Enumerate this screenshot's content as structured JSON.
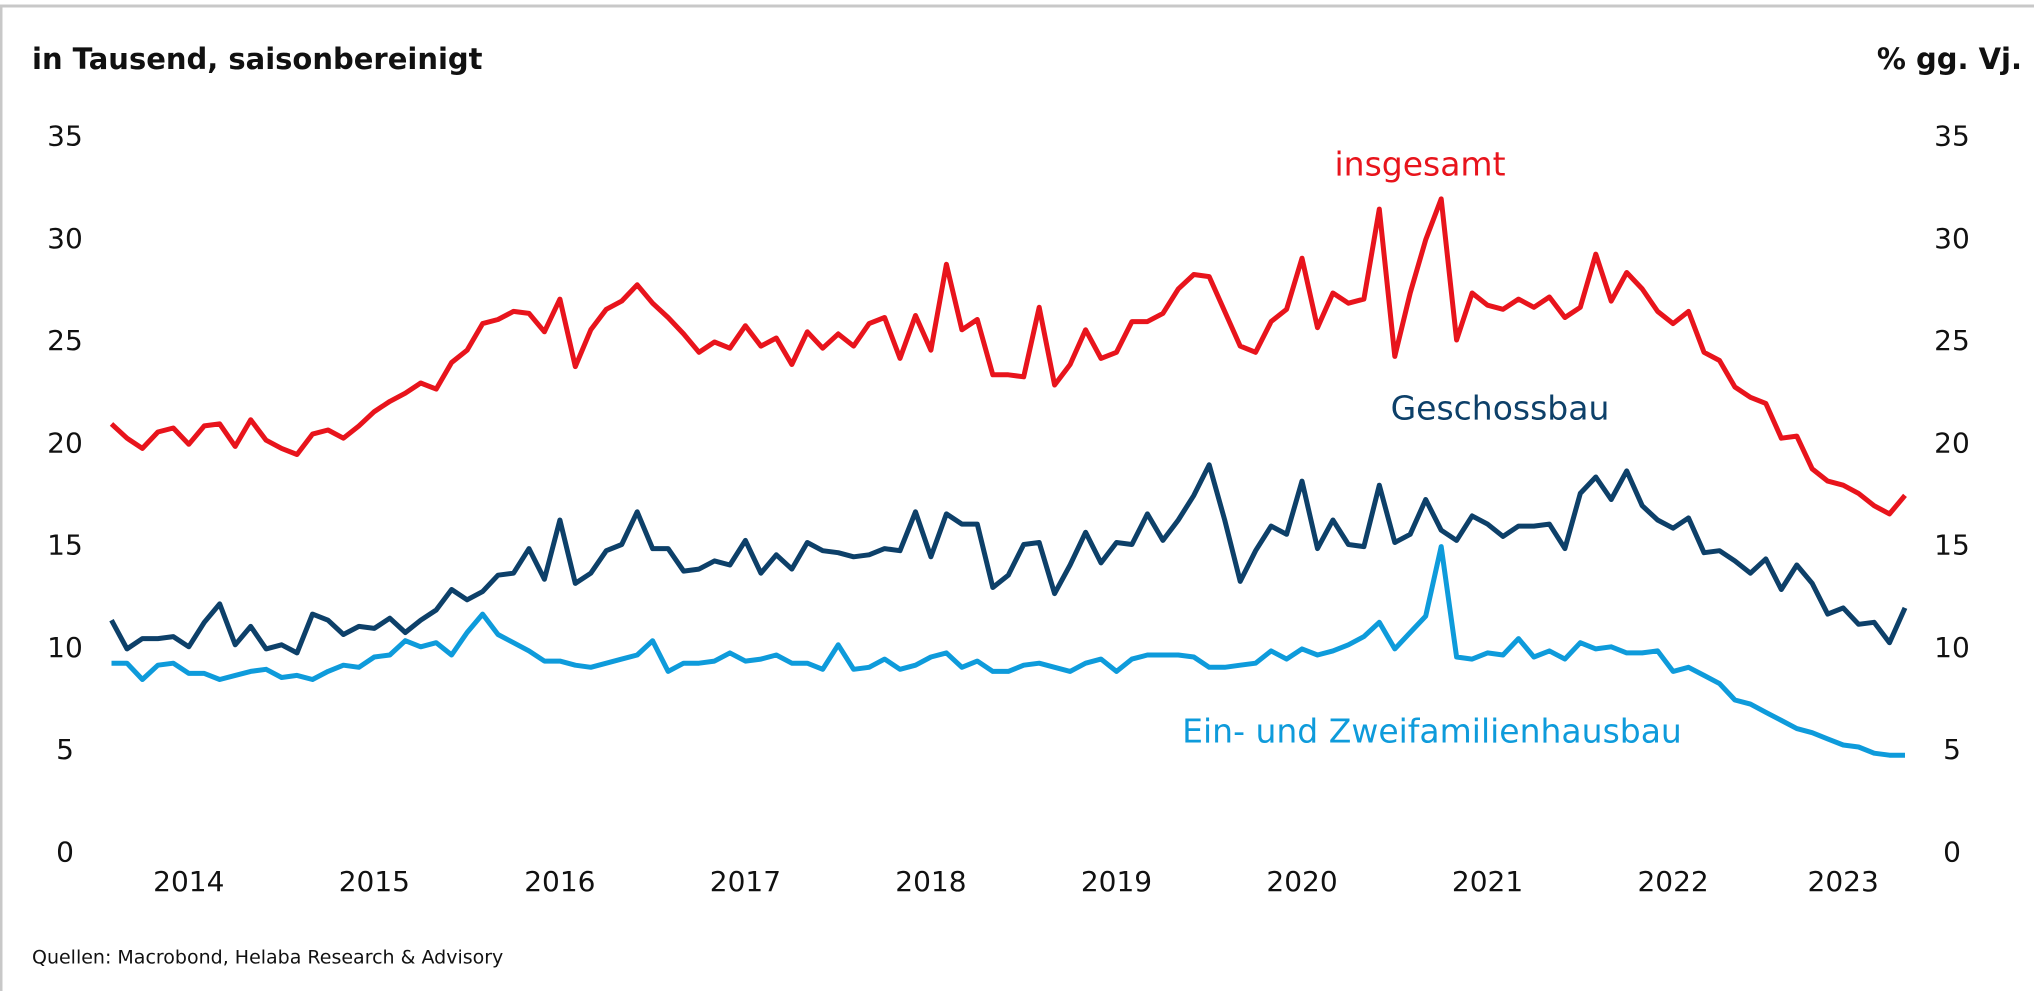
{
  "chart_data": {
    "type": "line",
    "title": "in Tausend, saisonbereinigt",
    "y2_title": "% gg. Vj.",
    "source": "Quellen: Macrobond, Helaba Research & Advisory",
    "categories": [
      null,
      null,
      null,
      null,
      null,
      "2014",
      null,
      null,
      null,
      null,
      null,
      null,
      null,
      null,
      null,
      null,
      null,
      "2015",
      null,
      null,
      null,
      null,
      null,
      null,
      null,
      null,
      null,
      null,
      null,
      "2016",
      null,
      null,
      null,
      null,
      null,
      null,
      null,
      null,
      null,
      null,
      null,
      "2017",
      null,
      null,
      null,
      null,
      null,
      null,
      null,
      null,
      null,
      null,
      null,
      "2018",
      null,
      null,
      null,
      null,
      null,
      null,
      null,
      null,
      null,
      null,
      null,
      "2019",
      null,
      null,
      null,
      null,
      null,
      null,
      null,
      null,
      null,
      null,
      null,
      "2020",
      null,
      null,
      null,
      null,
      null,
      null,
      null,
      null,
      null,
      null,
      null,
      "2021",
      null,
      null,
      null,
      null,
      null,
      null,
      null,
      null,
      null,
      null,
      null,
      "2022",
      null,
      null,
      null,
      null,
      null,
      null,
      null,
      null,
      null,
      null,
      "2023",
      null,
      null,
      null,
      null
    ],
    "series": [
      {
        "name": "insgesamt",
        "color": "#e8141c",
        "values": [
          21.0,
          20.3,
          19.8,
          20.6,
          20.8,
          20.0,
          20.9,
          21.0,
          19.9,
          21.2,
          20.2,
          19.8,
          19.5,
          20.5,
          20.7,
          20.3,
          20.9,
          21.6,
          22.1,
          22.5,
          23.0,
          22.7,
          24.0,
          24.6,
          25.9,
          26.1,
          26.5,
          26.4,
          25.5,
          27.1,
          23.8,
          25.6,
          26.6,
          27.0,
          27.8,
          26.9,
          26.2,
          25.4,
          24.5,
          25.0,
          24.7,
          25.8,
          24.8,
          25.2,
          23.9,
          25.5,
          24.7,
          25.4,
          24.8,
          25.9,
          26.2,
          24.2,
          26.3,
          24.6,
          28.8,
          25.6,
          26.1,
          23.4,
          23.4,
          23.3,
          26.7,
          22.9,
          23.9,
          25.6,
          24.2,
          24.5,
          26.0,
          26.0,
          26.4,
          27.6,
          28.3,
          28.2,
          26.5,
          24.8,
          24.5,
          26.0,
          26.6,
          29.1,
          25.7,
          27.4,
          26.9,
          27.1,
          31.5,
          24.3,
          27.4,
          30.0,
          32.0,
          25.1,
          27.4,
          26.8,
          26.6,
          27.1,
          26.7,
          27.2,
          26.2,
          26.7,
          29.3,
          27.0,
          28.4,
          27.6,
          26.5,
          25.9,
          26.5,
          24.5,
          24.1,
          22.8,
          22.3,
          22.0,
          20.3,
          20.4,
          18.8,
          18.2,
          18.0,
          17.6,
          17.0,
          16.6,
          17.5
        ]
      },
      {
        "name": "Geschossbau",
        "color": "#0d4069",
        "values": [
          11.4,
          10.0,
          10.5,
          10.5,
          10.6,
          10.1,
          11.3,
          12.2,
          10.2,
          11.1,
          10.0,
          10.2,
          9.8,
          11.7,
          11.4,
          10.7,
          11.1,
          11.0,
          11.5,
          10.8,
          11.4,
          11.9,
          12.9,
          12.4,
          12.8,
          13.6,
          13.7,
          14.9,
          13.4,
          16.3,
          13.2,
          13.7,
          14.8,
          15.1,
          16.7,
          14.9,
          14.9,
          13.8,
          13.9,
          14.3,
          14.1,
          15.3,
          13.7,
          14.6,
          13.9,
          15.2,
          14.8,
          14.7,
          14.5,
          14.6,
          14.9,
          14.8,
          16.7,
          14.5,
          16.6,
          16.1,
          16.1,
          13.0,
          13.6,
          15.1,
          15.2,
          12.7,
          14.1,
          15.7,
          14.2,
          15.2,
          15.1,
          16.6,
          15.3,
          16.3,
          17.5,
          19.0,
          16.3,
          13.3,
          14.8,
          16.0,
          15.6,
          18.2,
          14.9,
          16.3,
          15.1,
          15.0,
          18.0,
          15.2,
          15.6,
          17.3,
          15.8,
          15.3,
          16.5,
          16.1,
          15.5,
          16.0,
          16.0,
          16.1,
          14.9,
          17.6,
          18.4,
          17.3,
          18.7,
          17.0,
          16.3,
          15.9,
          16.4,
          14.7,
          14.8,
          14.3,
          13.7,
          14.4,
          12.9,
          14.1,
          13.2,
          11.7,
          12.0,
          11.2,
          11.3,
          10.3,
          12.0
        ]
      },
      {
        "name": "Ein- und Zweifamilienhausbau",
        "color": "#0e9bdb",
        "values": [
          9.3,
          9.3,
          8.5,
          9.2,
          9.3,
          8.8,
          8.8,
          8.5,
          8.7,
          8.9,
          9.0,
          8.6,
          8.7,
          8.5,
          8.9,
          9.2,
          9.1,
          9.6,
          9.7,
          10.4,
          10.1,
          10.3,
          9.7,
          10.8,
          11.7,
          10.7,
          10.3,
          9.9,
          9.4,
          9.4,
          9.2,
          9.1,
          9.3,
          9.5,
          9.7,
          10.4,
          8.9,
          9.3,
          9.3,
          9.4,
          9.8,
          9.4,
          9.5,
          9.7,
          9.3,
          9.3,
          9.0,
          10.2,
          9.0,
          9.1,
          9.5,
          9.0,
          9.2,
          9.6,
          9.8,
          9.1,
          9.4,
          8.9,
          8.9,
          9.2,
          9.3,
          9.1,
          8.9,
          9.3,
          9.5,
          8.9,
          9.5,
          9.7,
          9.7,
          9.7,
          9.6,
          9.1,
          9.1,
          9.2,
          9.3,
          9.9,
          9.5,
          10.0,
          9.7,
          9.9,
          10.2,
          10.6,
          11.3,
          10.0,
          10.8,
          11.6,
          15.0,
          9.6,
          9.5,
          9.8,
          9.7,
          10.5,
          9.6,
          9.9,
          9.5,
          10.3,
          10.0,
          10.1,
          9.8,
          9.8,
          9.9,
          8.9,
          9.1,
          8.7,
          8.3,
          7.5,
          7.3,
          6.9,
          6.5,
          6.1,
          5.9,
          5.6,
          5.3,
          5.2,
          4.9,
          4.8,
          4.8
        ]
      }
    ],
    "ylim": [
      0,
      35
    ],
    "yticks": [
      0,
      5,
      10,
      15,
      20,
      25,
      30,
      35
    ],
    "y2lim": [
      0,
      35
    ],
    "y2ticks": [
      0,
      5,
      10,
      15,
      20,
      25,
      30,
      35
    ],
    "grid": false
  }
}
